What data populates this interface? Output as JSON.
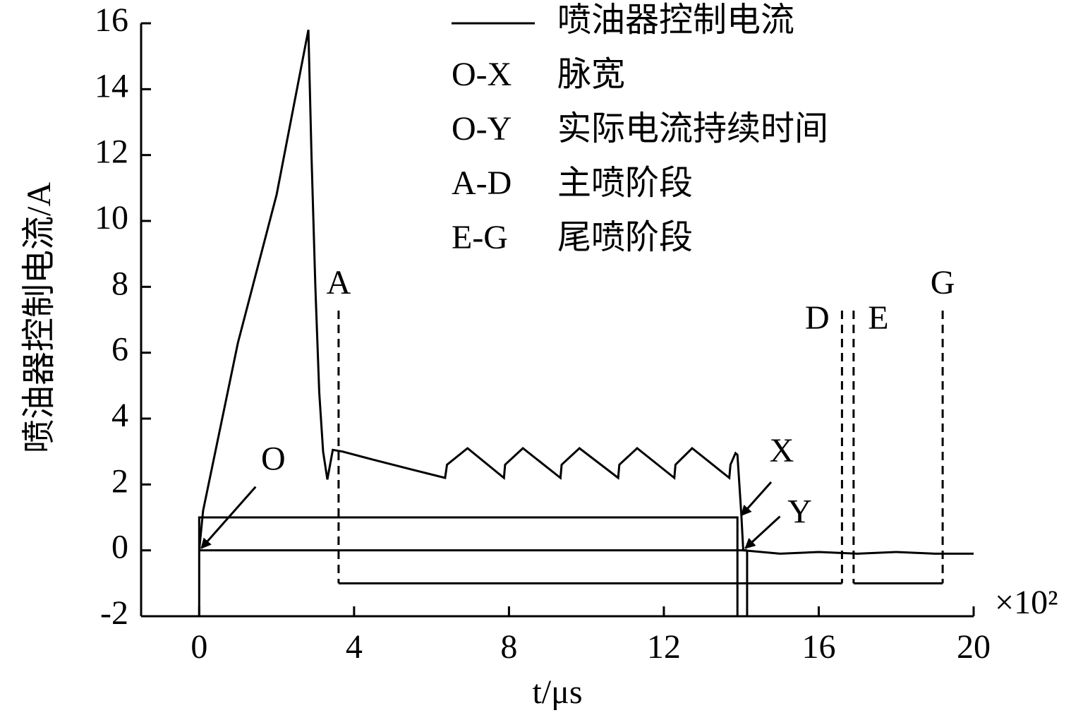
{
  "chart_data": {
    "type": "line",
    "y_label": "喷油器控制电流/A",
    "x_label": "t/μs",
    "x_multiplier": "×10²",
    "x": [
      0,
      0.1,
      1,
      2,
      2.82,
      2.9,
      3.0,
      3.1,
      3.2,
      3.31,
      3.45,
      3.7,
      4.5,
      5.5,
      6.35,
      6.4,
      6.93,
      7.87,
      7.9,
      8.36,
      9.33,
      9.36,
      9.82,
      10.82,
      10.85,
      11.31,
      12.27,
      12.3,
      12.73,
      13.69,
      13.72,
      13.85,
      13.9,
      14.0,
      14.05,
      15,
      16,
      17,
      18,
      19,
      20
    ],
    "series": [
      {
        "name": "喷油器控制电流",
        "color": "#000000",
        "values": [
          0,
          1.2,
          6.3,
          10.8,
          15.8,
          12,
          8,
          4.8,
          3,
          2.15,
          3.05,
          3.0,
          2.75,
          2.45,
          2.2,
          2.6,
          3.1,
          2.2,
          2.6,
          3.1,
          2.2,
          2.6,
          3.1,
          2.2,
          2.6,
          3.1,
          2.2,
          2.6,
          3.1,
          2.2,
          2.6,
          2.95,
          2.9,
          1.1,
          0,
          -0.1,
          -0.05,
          -0.1,
          -0.05,
          -0.1,
          -0.1
        ]
      }
    ],
    "legend_notes": [
      {
        "key": "O-X",
        "text": "脉宽"
      },
      {
        "key": "O-Y",
        "text": "实际电流持续时间"
      },
      {
        "key": "A-D",
        "text": "主喷阶段"
      },
      {
        "key": "E-G",
        "text": "尾喷阶段"
      }
    ],
    "pulse": {
      "start": 0,
      "end": 13.9,
      "height": 1,
      "actual_end": 14.15
    },
    "markers": [
      {
        "label": "A",
        "x": 3.6
      },
      {
        "label": "D",
        "x": 16.6
      },
      {
        "label": "E",
        "x": 16.9
      },
      {
        "label": "G",
        "x": 19.2
      }
    ],
    "phase_level": -1,
    "points": [
      {
        "label": "O",
        "x": 0,
        "y": 0
      },
      {
        "label": "X",
        "x": 13.95,
        "y": 1
      },
      {
        "label": "Y",
        "x": 14.05,
        "y": 0
      }
    ],
    "xlim": [
      -1.5,
      20
    ],
    "xticks": [
      0,
      4,
      8,
      12,
      16,
      20
    ],
    "ylim": [
      -2,
      16
    ],
    "yticks": [
      -2,
      0,
      2,
      4,
      6,
      8,
      10,
      12,
      14,
      16
    ],
    "grid": false
  }
}
